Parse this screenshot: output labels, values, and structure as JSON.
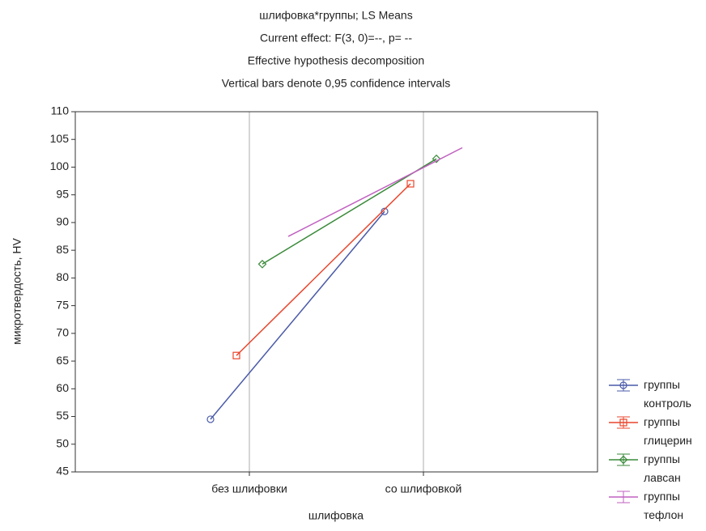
{
  "chart_data": {
    "type": "line",
    "title": "шлифовка*группы; LS Means",
    "subtitle": [
      "Current effect: F(3, 0)=--, p=  --",
      "Effective hypothesis decomposition",
      "Vertical bars denote 0,95 confidence intervals"
    ],
    "x_label": "шлифовка",
    "y_label": "микротвердость, HV",
    "categories": [
      "без шлифовки",
      "со шлифовкой"
    ],
    "series": [
      {
        "name": "группы контроль",
        "color": "#4a5aa8",
        "marker": "circle",
        "values": [
          54.5,
          92
        ]
      },
      {
        "name": "группы глицерин",
        "color": "#e8452c",
        "marker": "square",
        "values": [
          66,
          97
        ]
      },
      {
        "name": "группы лавсан",
        "color": "#3a8a3a",
        "marker": "diamond",
        "values": [
          82.5,
          101.5
        ]
      },
      {
        "name": "группы тефлон",
        "color": "#c060c0",
        "marker": "none",
        "values": [
          87.5,
          103.5
        ]
      }
    ],
    "ylim": [
      45,
      110
    ],
    "yticks": [
      45,
      50,
      55,
      60,
      65,
      70,
      75,
      80,
      85,
      90,
      95,
      100,
      105,
      110
    ],
    "grid": "x",
    "legend": "right"
  }
}
